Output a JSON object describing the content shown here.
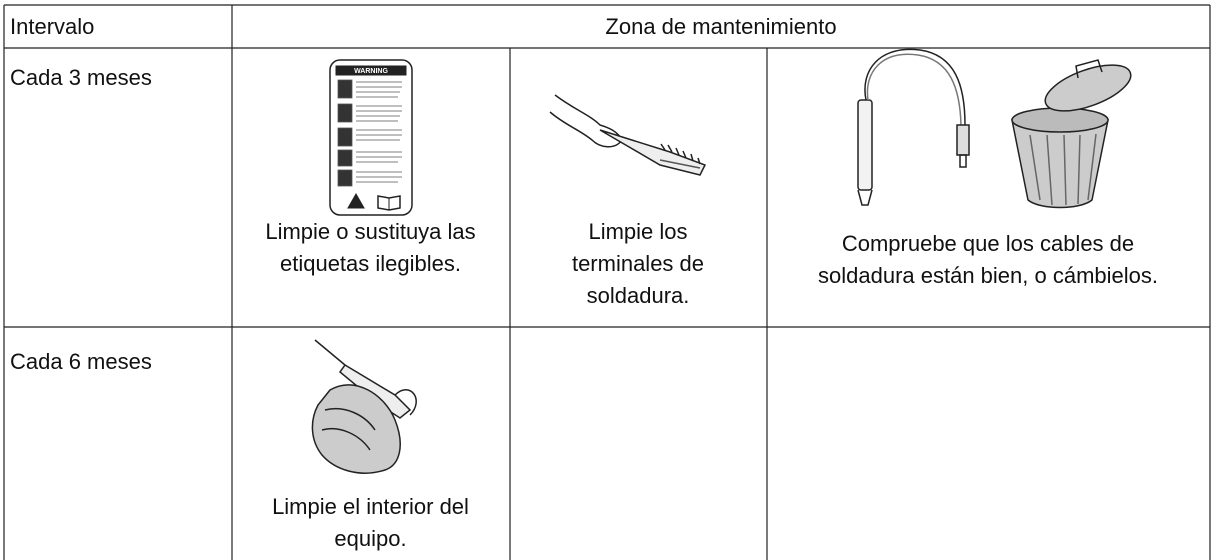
{
  "table": {
    "header": [
      "Intervalo",
      "Zona de mantenimiento"
    ],
    "rows": [
      [
        "Cada 3 meses",
        "Limpie o sustituya las etiquetas ilegibles.",
        "Limpie los terminales de soldadura.",
        "Compruebe que los cables de soldadura están bien, o cámbielos."
      ],
      [
        "Cada 6 meses",
        "Limpie el interior del equipo."
      ]
    ]
  },
  "illustrations": {
    "warning_label": "WARNING"
  }
}
